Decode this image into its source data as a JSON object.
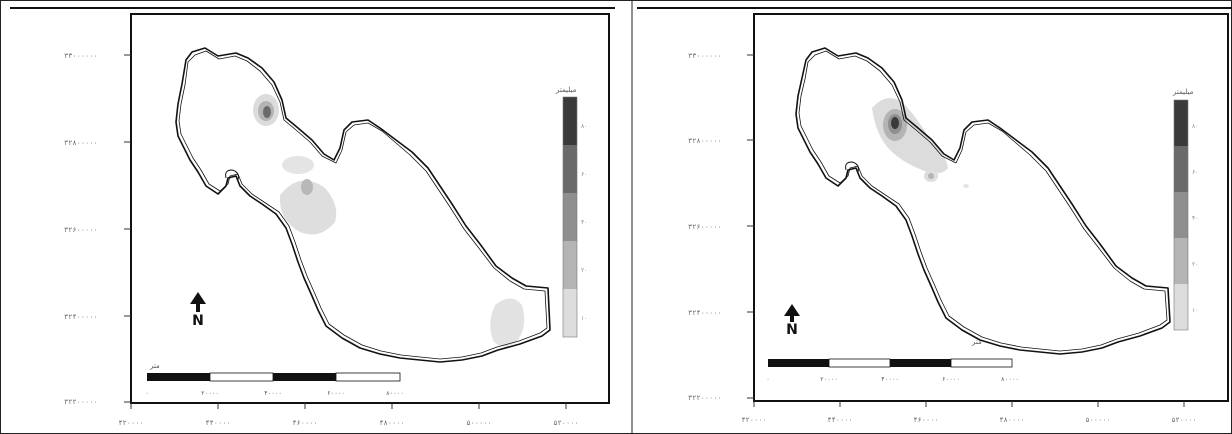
{
  "panels": [
    {
      "id": "left",
      "y_ticks": [
        "۳۳۰۰۰۰۰۰",
        "۳۲۸۰۰۰۰۰",
        "۳۲۶۰۰۰۰۰",
        "۳۲۴۰۰۰۰۰",
        "۳۲۲۰۰۰۰۰"
      ],
      "x_ticks": [
        "۴۲۰۰۰۰",
        "۴۴۰۰۰۰",
        "۴۶۰۰۰۰",
        "۴۸۰۰۰۰",
        "۵۰۰۰۰۰",
        "۵۲۰۰۰۰"
      ],
      "legend": {
        "title": "میلیمتر",
        "labels": [
          "۸۰",
          "۶۰",
          "۴۰",
          "۲۰",
          "۱۰"
        ],
        "colors": [
          "#3a3a3a",
          "#6a6a6a",
          "#8f8f8f",
          "#b4b4b4",
          "#dcdcdc"
        ]
      },
      "scale_bar": {
        "unit": "متر",
        "labels": [
          "۰",
          "۲۰۰۰۰",
          "۴۰۰۰۰",
          "۶۰۰۰۰",
          "۸۰۰۰۰"
        ]
      },
      "north_symbol": "N"
    },
    {
      "id": "right",
      "y_ticks": [
        "۳۳۰۰۰۰۰۰",
        "۳۲۸۰۰۰۰۰",
        "۳۲۶۰۰۰۰۰",
        "۳۲۴۰۰۰۰۰",
        "۳۲۲۰۰۰۰۰"
      ],
      "x_ticks": [
        "۴۲۰۰۰۰",
        "۴۴۰۰۰۰",
        "۴۶۰۰۰۰",
        "۴۸۰۰۰۰",
        "۵۰۰۰۰۰",
        "۵۲۰۰۰۰"
      ],
      "legend": {
        "title": "میلیمتر",
        "labels": [
          "۸۰",
          "۶۰",
          "۴۰",
          "۲۰",
          "۱۰"
        ],
        "colors": [
          "#3a3a3a",
          "#6a6a6a",
          "#8f8f8f",
          "#b4b4b4",
          "#dcdcdc"
        ]
      },
      "scale_bar": {
        "unit": "متر",
        "labels": [
          "۰",
          "۲۰۰۰۰",
          "۴۰۰۰۰",
          "۶۰۰۰۰",
          "۸۰۰۰۰"
        ]
      },
      "north_symbol": "N"
    }
  ]
}
